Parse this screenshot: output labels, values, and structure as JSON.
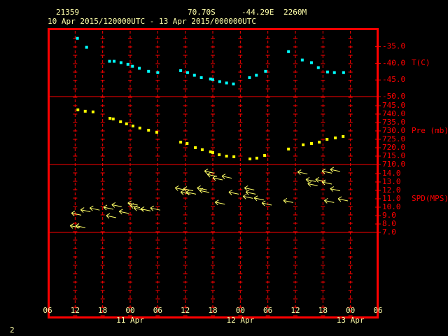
{
  "header": {
    "station": "21359",
    "latitude": "70.70S",
    "longitude": "-44.29E",
    "elevation": "2260M",
    "period": "10 Apr 2015/120000UTC - 13 Apr 2015/000000UTC"
  },
  "page_number": "2",
  "chart_data": [
    {
      "type": "scatter",
      "ylabel": "T(C)",
      "color": "#00ffff",
      "marker": "square",
      "x": [
        6.5,
        8.5,
        13.5,
        14.5,
        16,
        17.5,
        18.5,
        20,
        22,
        24,
        29,
        30.5,
        32,
        33.5,
        35.5,
        36,
        37.5,
        39,
        40.5,
        44,
        45.5,
        47.5,
        52.5,
        55.5,
        57.5,
        59,
        61,
        62.5,
        64.5
      ],
      "values": [
        -32.5,
        -35.2,
        -39.4,
        -39.4,
        -39.8,
        -40.3,
        -40.9,
        -41.5,
        -42.4,
        -42.8,
        -42.2,
        -42.8,
        -43.6,
        -44.3,
        -44.7,
        -44.9,
        -45.5,
        -45.9,
        -46.2,
        -44.3,
        -43.6,
        -42.4,
        -36.5,
        -39.0,
        -39.8,
        -41.3,
        -42.6,
        -42.8,
        -42.8
      ],
      "ylim": [
        -50,
        -29.4
      ],
      "yticks": [
        {
          "value": -35,
          "label": "-35.0"
        },
        {
          "value": -40,
          "label": "-40.0"
        },
        {
          "value": -45,
          "label": "-45.0"
        },
        {
          "value": -50,
          "label": "-50.0"
        }
      ]
    },
    {
      "type": "scatter",
      "ylabel": "Pre (mb)",
      "color": "#ffff00",
      "marker": "square",
      "x": [
        6.6,
        8.2,
        9.9,
        13.6,
        14.3,
        15.9,
        17.2,
        18.6,
        20.1,
        22.0,
        23.8,
        29.0,
        30.4,
        32.2,
        33.7,
        35.5,
        36.0,
        37.4,
        39.0,
        40.6,
        44.1,
        45.6,
        47.3,
        52.5,
        55.7,
        57.5,
        59.2,
        60.9,
        62.7,
        64.4
      ],
      "values": [
        742.5,
        741.7,
        741.3,
        737.5,
        737.1,
        735.4,
        734.2,
        732.9,
        731.7,
        730.4,
        729.2,
        723.3,
        722.5,
        720.0,
        718.8,
        717.5,
        717.1,
        715.8,
        715.0,
        714.6,
        713.3,
        713.8,
        715.4,
        719.2,
        721.7,
        722.5,
        723.3,
        725.0,
        725.8,
        726.7
      ],
      "ylim": [
        710,
        750.4
      ],
      "yticks": [
        {
          "value": 745,
          "label": "745.0"
        },
        {
          "value": 740,
          "label": "740.0"
        },
        {
          "value": 735,
          "label": "735.0"
        },
        {
          "value": 730,
          "label": "730.0"
        },
        {
          "value": 725,
          "label": "725.0"
        },
        {
          "value": 720,
          "label": "720.0"
        },
        {
          "value": 715,
          "label": "715.0"
        },
        {
          "value": 710,
          "label": "710.0"
        }
      ]
    },
    {
      "type": "scatter",
      "ylabel": "SPD(MPS)",
      "color": "#ffff66",
      "marker": "arrow",
      "x": [
        4.9,
        5.2,
        6.1,
        7.2,
        9.2,
        12.2,
        12.8,
        14.0,
        15.6,
        17.5,
        18.0,
        18.8,
        20.3,
        22.4,
        27.8,
        29.0,
        29.6,
        30.2,
        32.6,
        33.1,
        34.2,
        34.8,
        36.0,
        36.5,
        38.0,
        39.5,
        42.6,
        42.9,
        43.2,
        45.0,
        46.7,
        51.4,
        54.5,
        56.3,
        56.7,
        58.4,
        59.8,
        59.8,
        60.3,
        61.6,
        61.6,
        63.3
      ],
      "values": [
        7.8,
        9.3,
        7.8,
        9.7,
        9.9,
        10.0,
        9.0,
        10.3,
        9.5,
        10.5,
        10.2,
        9.9,
        9.8,
        9.9,
        12.3,
        11.8,
        12.2,
        11.8,
        12.3,
        12.0,
        14.3,
        13.9,
        13.5,
        10.6,
        13.7,
        11.8,
        11.3,
        12.3,
        11.8,
        11.1,
        10.5,
        10.8,
        14.2,
        13.3,
        12.8,
        13.3,
        13.0,
        14.3,
        10.8,
        14.5,
        12.2,
        11.0
      ],
      "ylim": [
        7,
        15.08
      ],
      "yticks": [
        {
          "value": 14,
          "label": "14.0"
        },
        {
          "value": 13,
          "label": "13.0"
        },
        {
          "value": 12,
          "label": "12.0"
        },
        {
          "value": 11,
          "label": "11.0"
        },
        {
          "value": 10,
          "label": "10.0"
        },
        {
          "value": 9,
          "label": "9.0"
        },
        {
          "value": 8,
          "label": "8.0"
        },
        {
          "value": 7,
          "label": "7.0"
        }
      ],
      "xlim": [
        0,
        72
      ],
      "xticks": [
        {
          "value": 0,
          "label": "06"
        },
        {
          "value": 6,
          "label": "12"
        },
        {
          "value": 12,
          "label": "18"
        },
        {
          "value": 18,
          "label": "00"
        },
        {
          "value": 24,
          "label": "06"
        },
        {
          "value": 30,
          "label": "12"
        },
        {
          "value": 36,
          "label": "18"
        },
        {
          "value": 42,
          "label": "00"
        },
        {
          "value": 48,
          "label": "06"
        },
        {
          "value": 54,
          "label": "12"
        },
        {
          "value": 60,
          "label": "18"
        },
        {
          "value": 66,
          "label": "00"
        },
        {
          "value": 72,
          "label": "06"
        }
      ],
      "date_labels": [
        {
          "value": 18,
          "label": "11 Apr"
        },
        {
          "value": 42,
          "label": "12 Apr"
        },
        {
          "value": 66,
          "label": "13 Apr"
        }
      ]
    }
  ]
}
